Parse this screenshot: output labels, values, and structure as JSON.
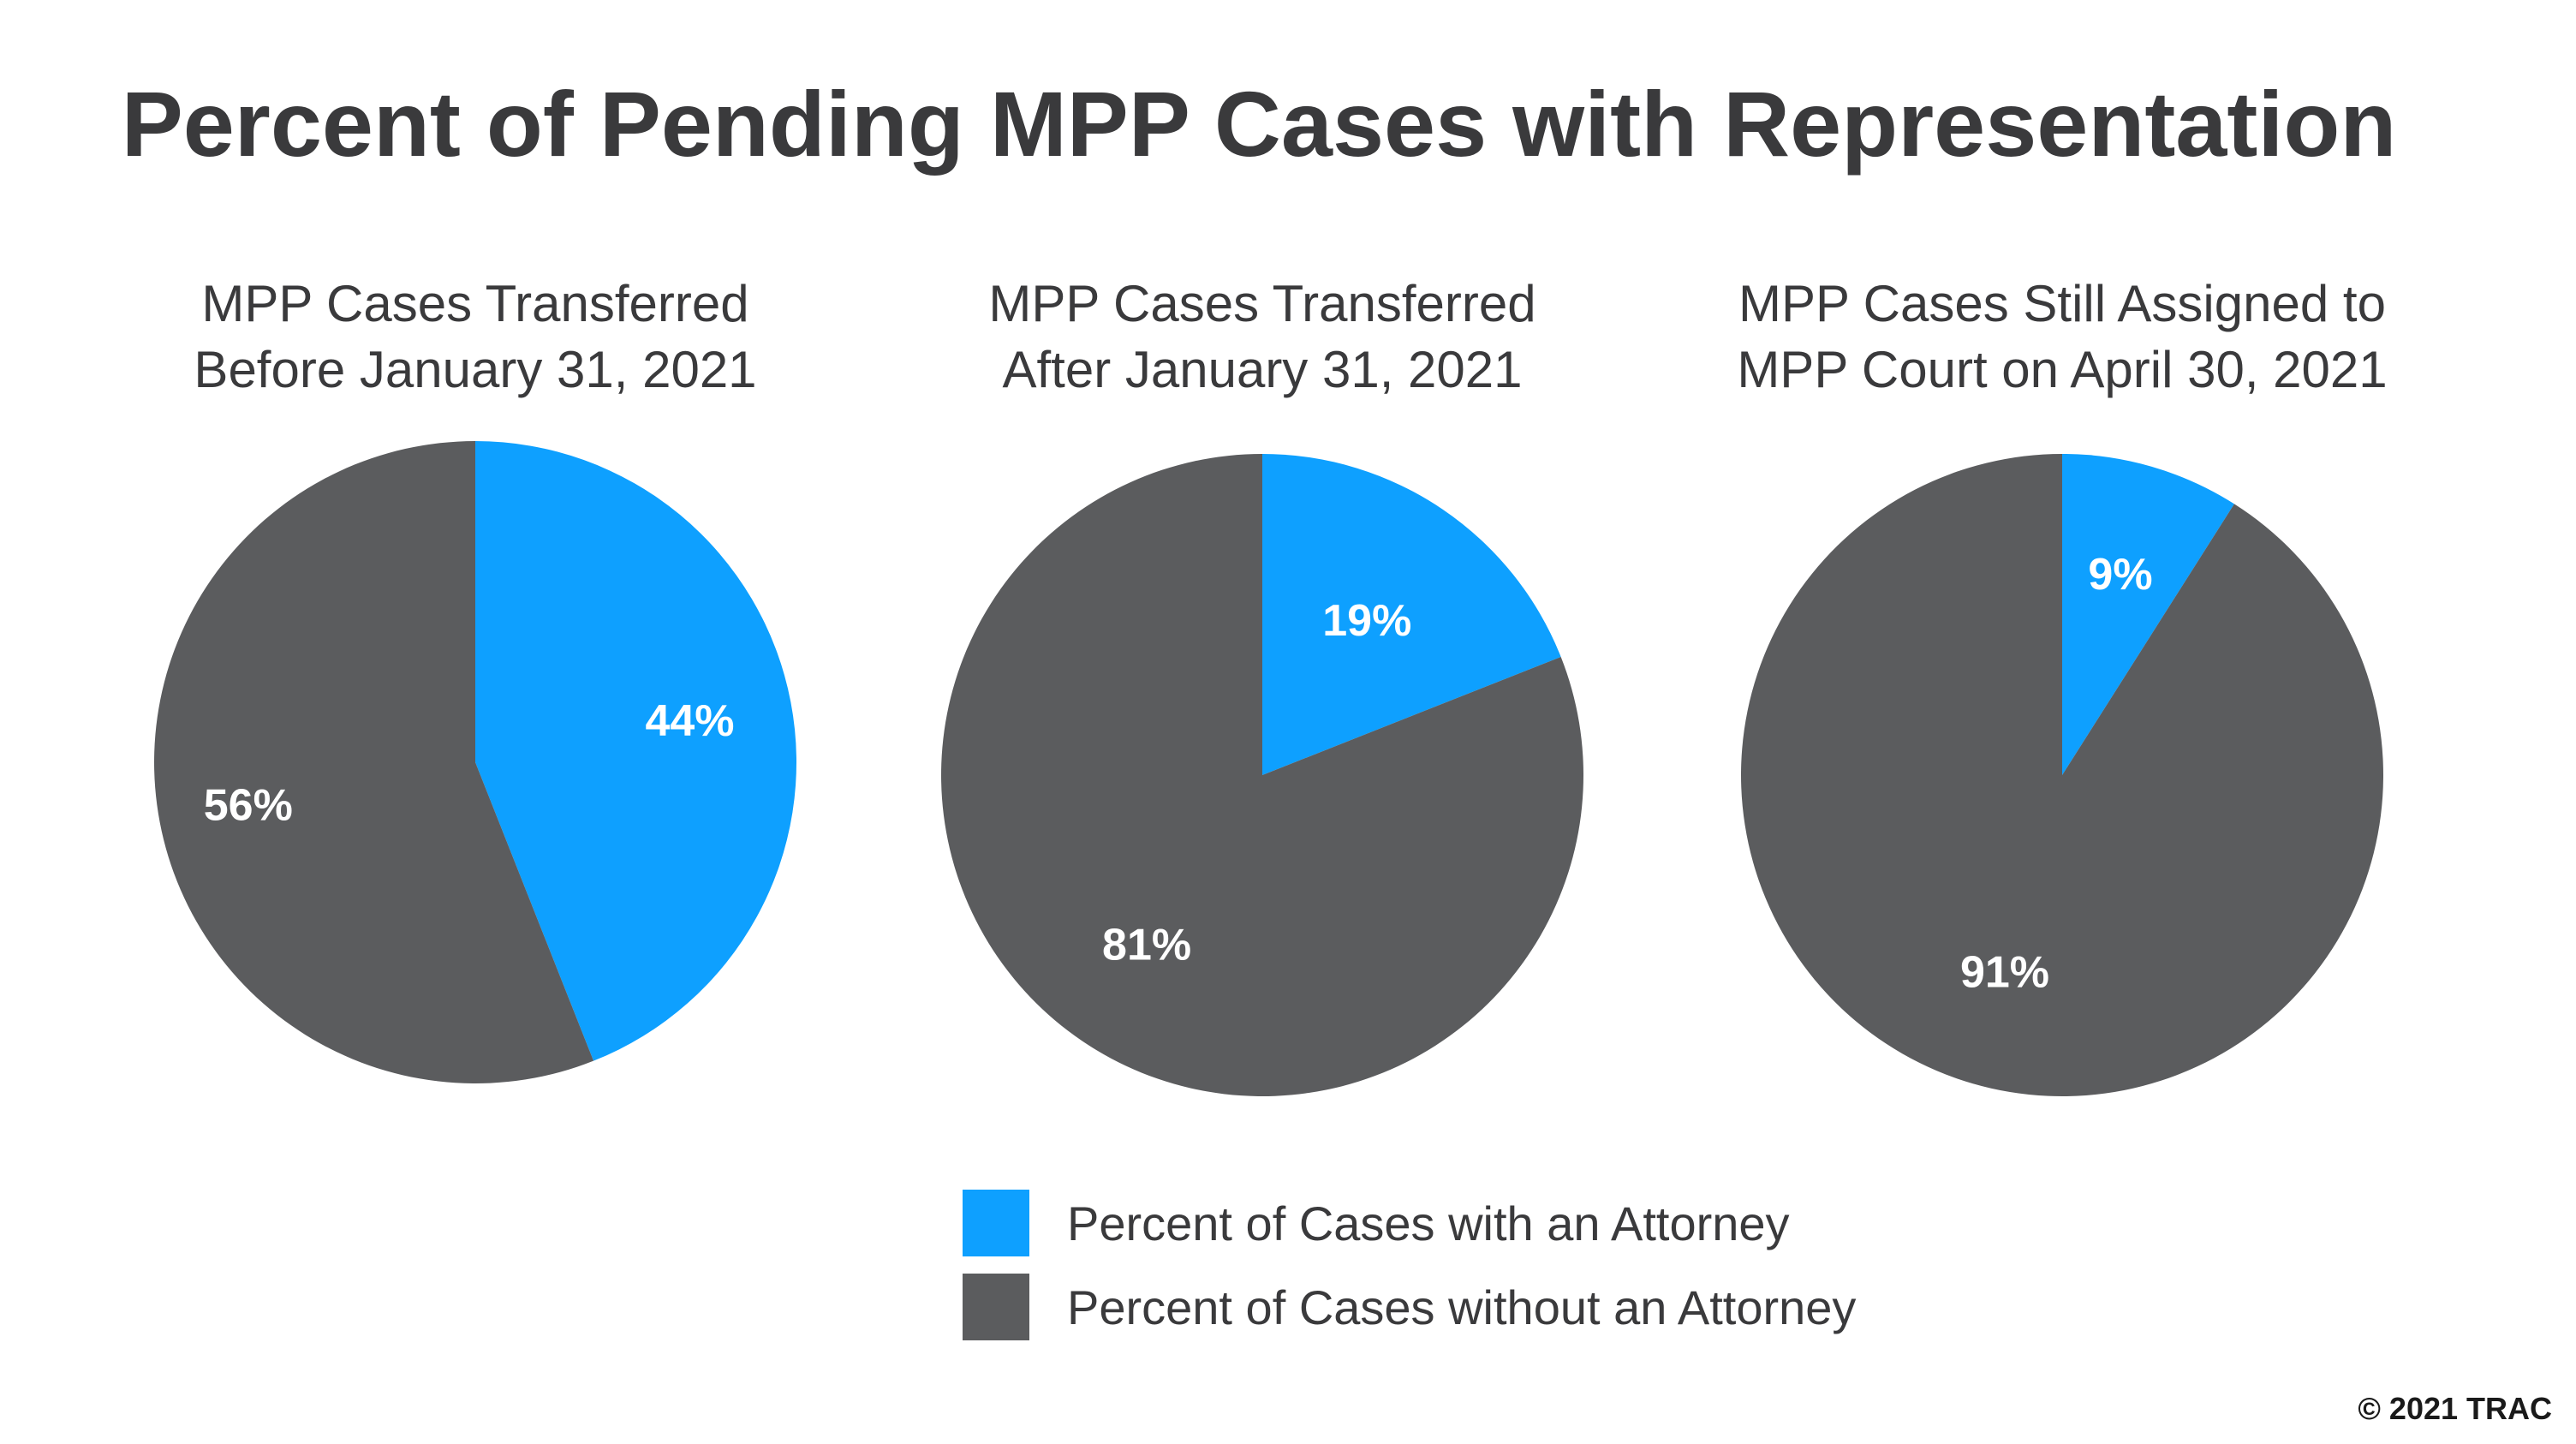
{
  "chart_data": {
    "type": "pie",
    "title": "Percent of Pending MPP Cases with Representation",
    "copyright": "© 2021 TRAC",
    "colors": {
      "with_attorney": "#0ea0ff",
      "without_attorney": "#5b5c5e"
    },
    "legend": [
      {
        "label": "Percent of Cases with an Attorney",
        "color": "#0ea0ff"
      },
      {
        "label": "Percent of Cases without an Attorney",
        "color": "#5b5c5e"
      }
    ],
    "charts": [
      {
        "title_lines": [
          "MPP Cases Transferred",
          "Before January 31, 2021"
        ],
        "slices": [
          {
            "name": "Percent of Cases with an Attorney",
            "value": 44,
            "label": "44%"
          },
          {
            "name": "Percent of Cases without an Attorney",
            "value": 56,
            "label": "56%"
          }
        ]
      },
      {
        "title_lines": [
          "MPP Cases Transferred",
          "After January 31, 2021"
        ],
        "slices": [
          {
            "name": "Percent of Cases with an Attorney",
            "value": 19,
            "label": "19%"
          },
          {
            "name": "Percent of Cases without an Attorney",
            "value": 81,
            "label": "81%"
          }
        ]
      },
      {
        "title_lines": [
          "MPP Cases Still Assigned to",
          "MPP Court on April 30, 2021"
        ],
        "slices": [
          {
            "name": "Percent of Cases with an Attorney",
            "value": 9,
            "label": "9%"
          },
          {
            "name": "Percent of Cases without an Attorney",
            "value": 91,
            "label": "91%"
          }
        ]
      }
    ]
  }
}
